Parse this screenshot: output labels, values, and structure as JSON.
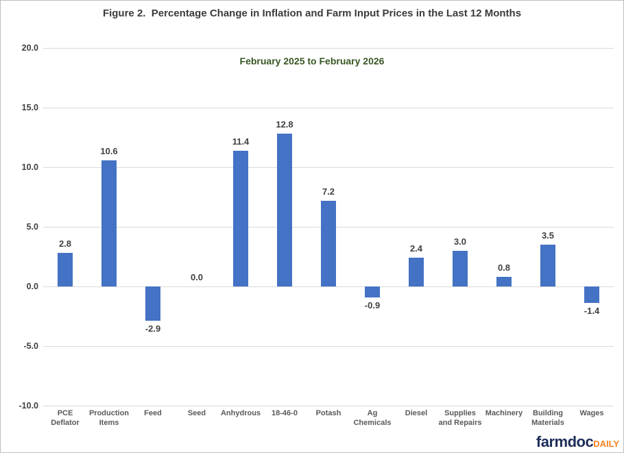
{
  "chart_data": {
    "type": "bar",
    "title": "Figure 2.  Percentage Change in Inflation and Farm Input Prices in the Last 12 Months",
    "subtitle": "February 2025 to February 2026",
    "categories": [
      "PCE Deflator",
      "Production Items",
      "Feed",
      "Seed",
      "Anhydrous",
      "18-46-0",
      "Potash",
      "Ag Chemicals",
      "Diesel",
      "Supplies and Repairs",
      "Machinery",
      "Building Materials",
      "Wages"
    ],
    "values": [
      2.8,
      10.6,
      -2.9,
      0.0,
      11.4,
      12.8,
      7.2,
      -0.9,
      2.4,
      3.0,
      0.8,
      3.5,
      -1.4
    ],
    "data_labels": [
      "2.8",
      "10.6",
      "-2.9",
      "0.0",
      "11.4",
      "12.8",
      "7.2",
      "-0.9",
      "2.4",
      "3.0",
      "0.8",
      "3.5",
      "-1.4"
    ],
    "y_tick_labels": [
      "20.0",
      "15.0",
      "10.0",
      "5.0",
      "0.0",
      "-5.0",
      "-10.0"
    ],
    "y_tick_values": [
      20,
      15,
      10,
      5,
      0,
      -5,
      -10
    ],
    "ylim": [
      -10.0,
      20.0
    ],
    "xlabel": "",
    "ylabel": "",
    "grid": true,
    "legend": "none",
    "bar_color": "#4472C4"
  },
  "footer": {
    "logo_farmdoc": "farmdoc",
    "logo_daily": "DAILY"
  },
  "colors": {
    "bar": "#4472C4",
    "title_gray": "#3B3B3B",
    "subtitle_green": "#375623",
    "axis_value_gray": "#404040",
    "axis_category_gray": "#595959",
    "gridline": "#D9D9D9",
    "logo_navy": "#1E2E5A",
    "logo_orange": "#F58220",
    "canvas_border": "#BFBFBF"
  }
}
